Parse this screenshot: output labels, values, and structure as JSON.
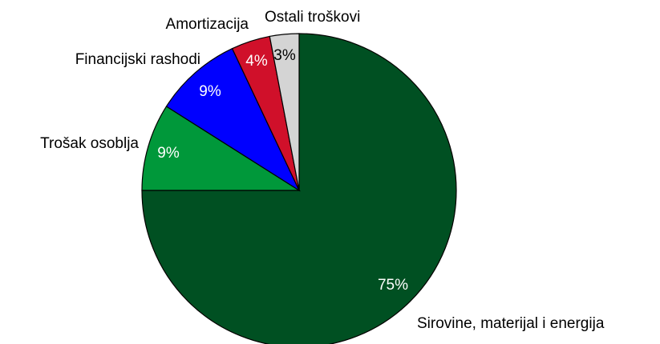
{
  "chart_data": {
    "type": "pie",
    "categories": [
      "Sirovine, materijal i energija",
      "Trošak osoblja",
      "Financijski rashodi",
      "Amortizacija",
      "Ostali troškovi"
    ],
    "values": [
      75,
      9,
      9,
      4,
      3
    ],
    "value_labels": [
      "75%",
      "9%",
      "9%",
      "4%",
      "3%"
    ],
    "colors": [
      "#005022",
      "#00983a",
      "#0000ff",
      "#d0102a",
      "#d4d4d4"
    ],
    "start_angle": 90,
    "direction": "clockwise"
  }
}
